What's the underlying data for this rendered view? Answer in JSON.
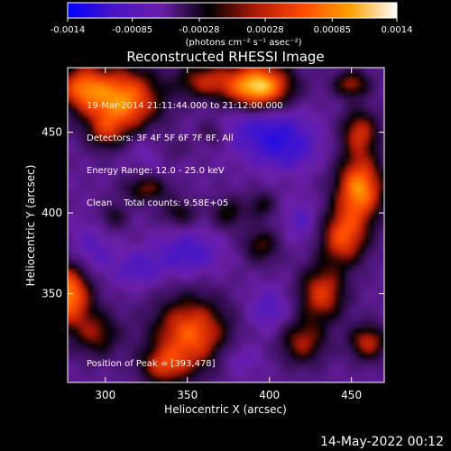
{
  "chart_data": {
    "type": "heatmap",
    "title": "Reconstructed RHESSI Image",
    "xlabel": "Heliocentric X (arcsec)",
    "ylabel": "Heliocentric Y (arcsec)",
    "xlim": [
      277,
      470
    ],
    "ylim": [
      295,
      490
    ],
    "x_ticks": [
      300,
      350,
      400,
      450
    ],
    "y_ticks": [
      350,
      400,
      450
    ],
    "colorbar": {
      "range": [
        -0.0014,
        0.0014
      ],
      "tick_values": [
        -0.0014,
        -0.00085,
        -0.00028,
        0.00028,
        0.00085,
        0.0014
      ],
      "tick_labels": [
        "-0.0014",
        "-0.00085",
        "-0.00028",
        "0.00028",
        "0.00085",
        "0.0014"
      ],
      "units_label": "(photons cm⁻² s⁻¹ asec⁻²)",
      "colors": [
        "#0000ff",
        "#4a14c4",
        "#6a1fa8",
        "#000000",
        "#b01808",
        "#ff4a00",
        "#ffa000",
        "#ffffff"
      ]
    },
    "annotation_lines": [
      "19-Mar-2014 21:11:44.000 to 21:12:00.000",
      "Detectors: 3F 4F 5F 6F 7F 8F, All",
      "Energy Range: 12.0 - 25.0 keV",
      "Clean    Total counts: 9.58E+05"
    ],
    "peak_text": "Position of Peak = [393,478]",
    "peak": {
      "x": 393,
      "y": 478
    },
    "bright_sources": [
      {
        "x": 310,
        "y": 470,
        "sx": 16,
        "sy": 14,
        "amp": 1.3
      },
      {
        "x": 285,
        "y": 478,
        "sx": 10,
        "sy": 10,
        "amp": 0.9
      },
      {
        "x": 393,
        "y": 478,
        "sx": 14,
        "sy": 10,
        "amp": 1.6
      },
      {
        "x": 360,
        "y": 482,
        "sx": 12,
        "sy": 8,
        "amp": 0.7
      },
      {
        "x": 277,
        "y": 350,
        "sx": 10,
        "sy": 14,
        "amp": 1.3
      },
      {
        "x": 295,
        "y": 325,
        "sx": 10,
        "sy": 10,
        "amp": 0.6
      },
      {
        "x": 352,
        "y": 325,
        "sx": 16,
        "sy": 16,
        "amp": 1.1
      },
      {
        "x": 335,
        "y": 305,
        "sx": 10,
        "sy": 8,
        "amp": 0.7
      },
      {
        "x": 455,
        "y": 415,
        "sx": 10,
        "sy": 14,
        "amp": 1.3
      },
      {
        "x": 445,
        "y": 385,
        "sx": 10,
        "sy": 12,
        "amp": 1.0
      },
      {
        "x": 432,
        "y": 350,
        "sx": 10,
        "sy": 12,
        "amp": 0.9
      },
      {
        "x": 455,
        "y": 450,
        "sx": 8,
        "sy": 10,
        "amp": 0.8
      },
      {
        "x": 420,
        "y": 320,
        "sx": 10,
        "sy": 10,
        "amp": 0.7
      },
      {
        "x": 460,
        "y": 320,
        "sx": 8,
        "sy": 8,
        "amp": 0.8
      },
      {
        "x": 325,
        "y": 415,
        "sx": 10,
        "sy": 6,
        "amp": 0.6
      },
      {
        "x": 345,
        "y": 400,
        "sx": 8,
        "sy": 6,
        "amp": 0.45
      },
      {
        "x": 395,
        "y": 380,
        "sx": 8,
        "sy": 8,
        "amp": 0.55
      },
      {
        "x": 375,
        "y": 400,
        "sx": 7,
        "sy": 7,
        "amp": 0.5
      },
      {
        "x": 395,
        "y": 405,
        "sx": 6,
        "sy": 6,
        "amp": 0.45
      },
      {
        "x": 300,
        "y": 450,
        "sx": 8,
        "sy": 8,
        "amp": 0.5
      },
      {
        "x": 450,
        "y": 480,
        "sx": 8,
        "sy": 6,
        "amp": 0.7
      },
      {
        "x": 305,
        "y": 398,
        "sx": 6,
        "sy": 6,
        "amp": 0.4
      },
      {
        "x": 340,
        "y": 440,
        "sx": 8,
        "sy": 6,
        "amp": 0.35
      },
      {
        "x": 365,
        "y": 450,
        "sx": 6,
        "sy": 6,
        "amp": 0.35
      }
    ],
    "dark_regions": [
      {
        "x": 395,
        "y": 455,
        "sx": 18,
        "sy": 12,
        "amp": 1.0
      },
      {
        "x": 410,
        "y": 440,
        "sx": 14,
        "sy": 10,
        "amp": 0.9
      },
      {
        "x": 350,
        "y": 375,
        "sx": 14,
        "sy": 10,
        "amp": 0.9
      },
      {
        "x": 320,
        "y": 365,
        "sx": 10,
        "sy": 8,
        "amp": 0.7
      },
      {
        "x": 290,
        "y": 375,
        "sx": 10,
        "sy": 12,
        "amp": 0.7
      },
      {
        "x": 400,
        "y": 340,
        "sx": 10,
        "sy": 10,
        "amp": 0.7
      },
      {
        "x": 380,
        "y": 310,
        "sx": 10,
        "sy": 8,
        "amp": 0.6
      },
      {
        "x": 330,
        "y": 440,
        "sx": 12,
        "sy": 8,
        "amp": 0.6
      },
      {
        "x": 420,
        "y": 395,
        "sx": 8,
        "sy": 10,
        "amp": 0.6
      }
    ],
    "background_level": -0.00045
  },
  "footer": {
    "date": "14-May-2022 00:12"
  }
}
